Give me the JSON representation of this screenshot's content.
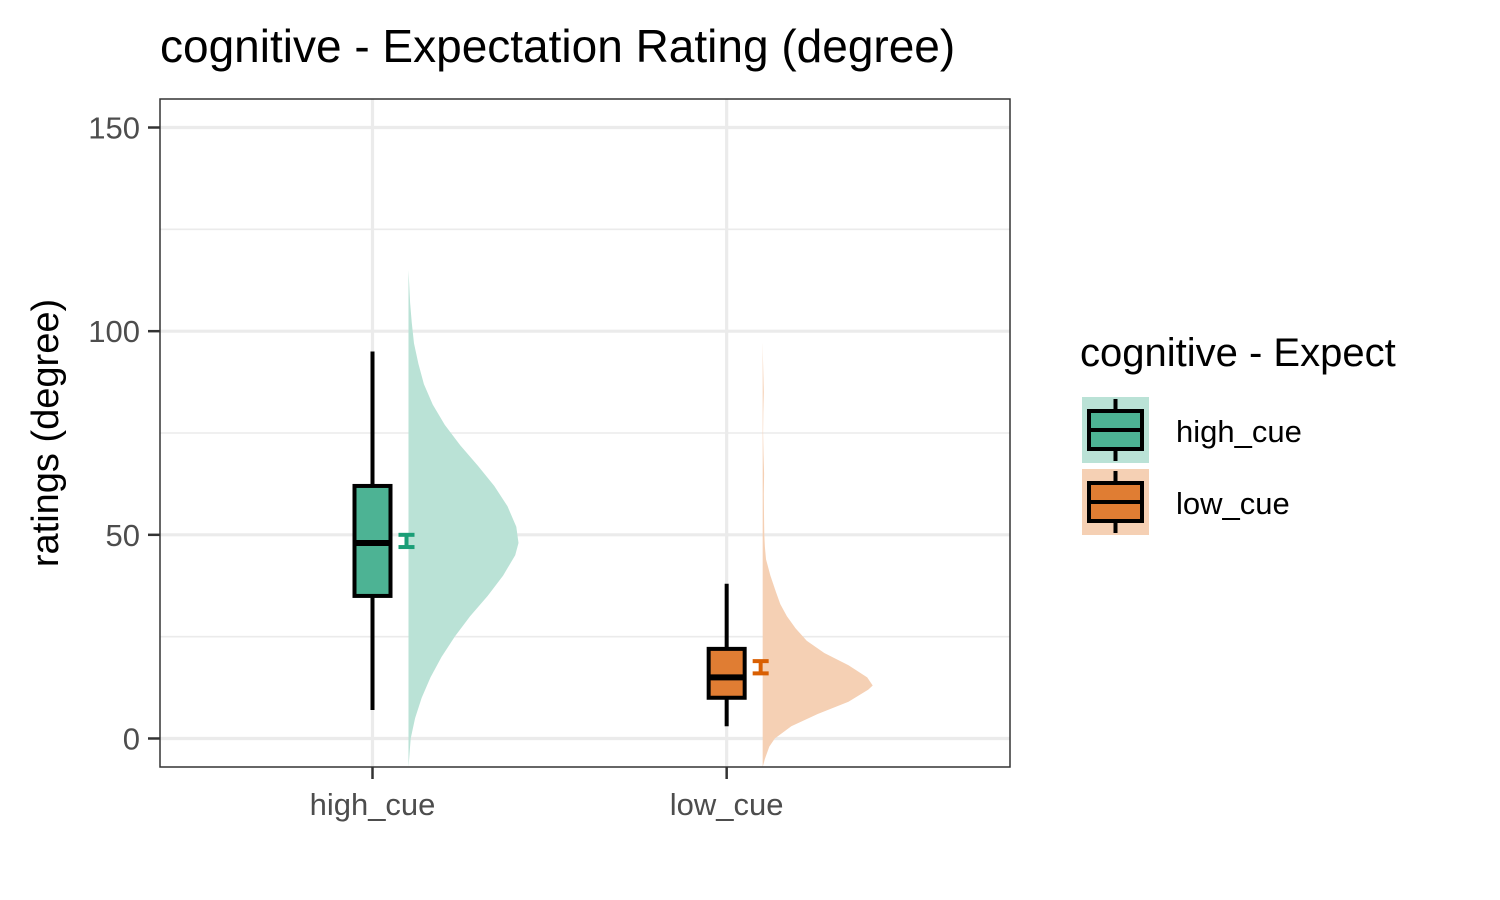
{
  "chart_data": {
    "type": "raincloud",
    "title": "cognitive  - Expectation Rating (degree)",
    "xlabel": "",
    "ylabel": "ratings (degree)",
    "ylim": [
      -7,
      157
    ],
    "yticks": [
      0,
      50,
      100,
      150
    ],
    "grid": true,
    "legend": {
      "title": "cognitive  - Expect",
      "position": "right",
      "entries": [
        "high_cue",
        "low_cue"
      ]
    },
    "categories": [
      "high_cue",
      "low_cue"
    ],
    "series": [
      {
        "category": "high_cue",
        "color": "#1b9e77",
        "box_fill": "#4db394",
        "density_fill": "#bae2d6",
        "box": {
          "whisker_low": 7,
          "q1": 35,
          "median": 48,
          "q3": 62,
          "whisker_high": 95
        },
        "mean_ci": [
          47,
          50
        ],
        "density": [
          [
            -7,
            0.0
          ],
          [
            0,
            0.02
          ],
          [
            5,
            0.06
          ],
          [
            10,
            0.12
          ],
          [
            15,
            0.2
          ],
          [
            20,
            0.3
          ],
          [
            25,
            0.42
          ],
          [
            30,
            0.56
          ],
          [
            35,
            0.72
          ],
          [
            40,
            0.86
          ],
          [
            45,
            0.97
          ],
          [
            48,
            1.0
          ],
          [
            52,
            0.98
          ],
          [
            57,
            0.9
          ],
          [
            62,
            0.78
          ],
          [
            67,
            0.63
          ],
          [
            72,
            0.47
          ],
          [
            77,
            0.33
          ],
          [
            82,
            0.22
          ],
          [
            87,
            0.14
          ],
          [
            92,
            0.09
          ],
          [
            97,
            0.05
          ],
          [
            102,
            0.03
          ],
          [
            107,
            0.015
          ],
          [
            112,
            0.005
          ],
          [
            115,
            0.0
          ]
        ]
      },
      {
        "category": "low_cue",
        "color": "#d95f02",
        "box_fill": "#e07d33",
        "density_fill": "#f5d0b4",
        "box": {
          "whisker_low": 3,
          "q1": 10,
          "median": 15,
          "q3": 22,
          "whisker_high": 38
        },
        "mean_ci": [
          16,
          19
        ],
        "density": [
          [
            -7,
            0.0
          ],
          [
            -5,
            0.02
          ],
          [
            -2,
            0.06
          ],
          [
            0,
            0.11
          ],
          [
            3,
            0.26
          ],
          [
            6,
            0.5
          ],
          [
            9,
            0.78
          ],
          [
            12,
            0.96
          ],
          [
            13,
            1.0
          ],
          [
            15,
            0.95
          ],
          [
            18,
            0.78
          ],
          [
            21,
            0.56
          ],
          [
            24,
            0.4
          ],
          [
            27,
            0.3
          ],
          [
            30,
            0.22
          ],
          [
            33,
            0.16
          ],
          [
            36,
            0.12
          ],
          [
            40,
            0.07
          ],
          [
            44,
            0.03
          ],
          [
            47,
            0.02
          ],
          [
            50,
            0.015
          ],
          [
            55,
            0.012
          ],
          [
            60,
            0.01
          ],
          [
            65,
            0.013
          ],
          [
            70,
            0.008
          ],
          [
            75,
            0.004
          ],
          [
            80,
            0.006
          ],
          [
            85,
            0.01
          ],
          [
            90,
            0.006
          ],
          [
            94,
            0.002
          ],
          [
            97,
            0.0
          ]
        ]
      }
    ]
  }
}
